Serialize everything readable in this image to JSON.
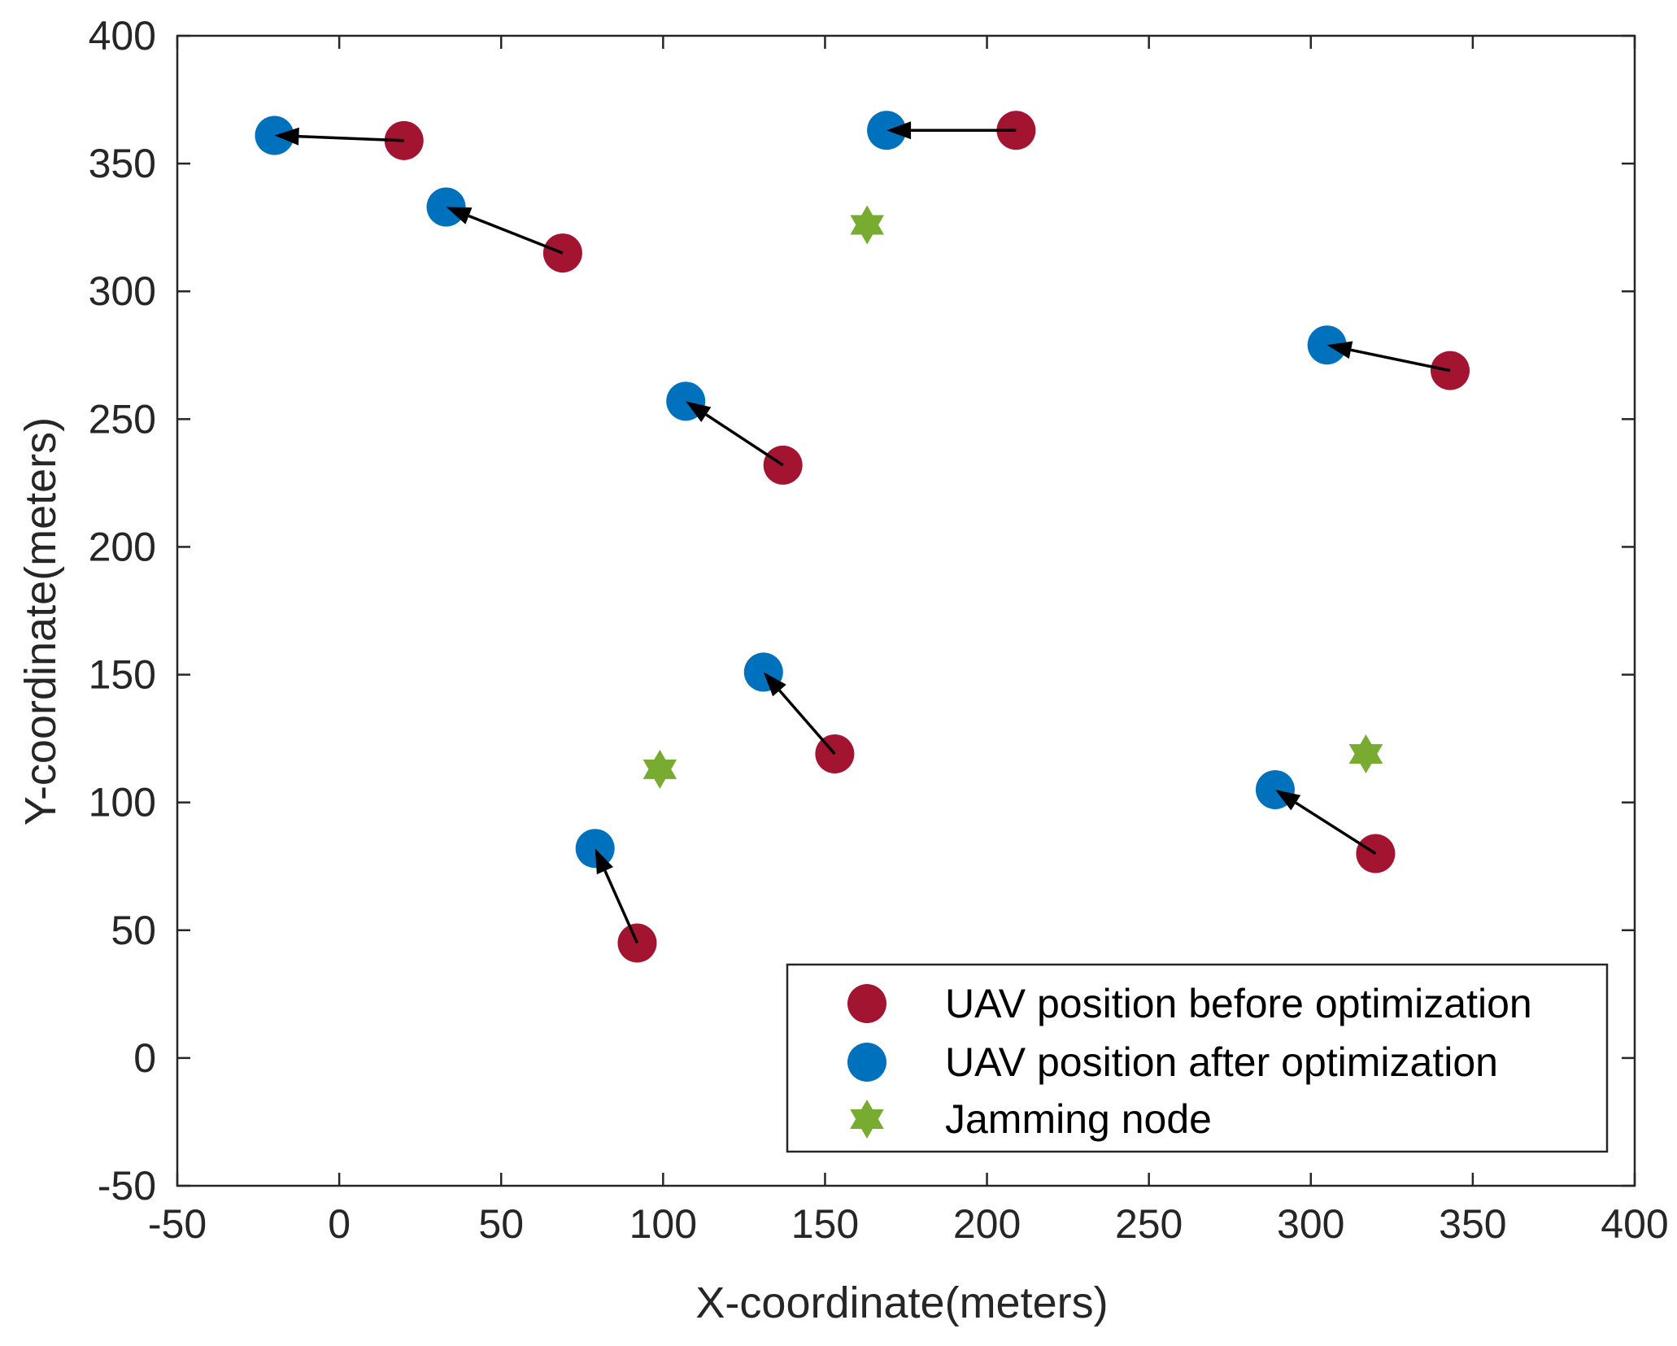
{
  "chart_data": {
    "type": "scatter",
    "title": "",
    "xlabel": "X-coordinate(meters)",
    "ylabel": "Y-coordinate(meters)",
    "xlim": [
      -50,
      400
    ],
    "ylim": [
      -50,
      400
    ],
    "xticks": [
      -50,
      0,
      50,
      100,
      150,
      200,
      250,
      300,
      350,
      400
    ],
    "yticks": [
      -50,
      0,
      50,
      100,
      150,
      200,
      250,
      300,
      350,
      400
    ],
    "xtick_labels": [
      "-50",
      "0",
      "50",
      "100",
      "150",
      "200",
      "250",
      "300",
      "350",
      "400"
    ],
    "ytick_labels": [
      "-50",
      "0",
      "50",
      "100",
      "150",
      "200",
      "250",
      "300",
      "350",
      "400"
    ],
    "grid": false,
    "legend_position": "bottom-right",
    "series": [
      {
        "name": "UAV position before optimization",
        "color": "#A2142F",
        "marker": "circle",
        "points": [
          [
            20,
            359
          ],
          [
            69,
            315
          ],
          [
            209,
            363
          ],
          [
            137,
            232
          ],
          [
            153,
            119
          ],
          [
            92,
            45
          ],
          [
            343,
            269
          ],
          [
            320,
            80
          ]
        ]
      },
      {
        "name": "UAV position after optimization",
        "color": "#0072BD",
        "marker": "circle",
        "points": [
          [
            -20,
            361
          ],
          [
            33,
            333
          ],
          [
            169,
            363
          ],
          [
            107,
            257
          ],
          [
            131,
            151
          ],
          [
            79,
            82
          ],
          [
            305,
            279
          ],
          [
            289,
            105
          ]
        ]
      },
      {
        "name": "Jamming node",
        "color": "#77AC30",
        "marker": "hexagram",
        "points": [
          [
            163,
            326
          ],
          [
            99,
            113
          ],
          [
            317,
            119
          ]
        ]
      }
    ],
    "arrows": [
      {
        "from": [
          20,
          359
        ],
        "to": [
          -20,
          361
        ]
      },
      {
        "from": [
          69,
          315
        ],
        "to": [
          33,
          333
        ]
      },
      {
        "from": [
          209,
          363
        ],
        "to": [
          169,
          363
        ]
      },
      {
        "from": [
          137,
          232
        ],
        "to": [
          107,
          257
        ]
      },
      {
        "from": [
          153,
          119
        ],
        "to": [
          131,
          151
        ]
      },
      {
        "from": [
          92,
          45
        ],
        "to": [
          79,
          82
        ]
      },
      {
        "from": [
          343,
          269
        ],
        "to": [
          305,
          279
        ]
      },
      {
        "from": [
          320,
          80
        ],
        "to": [
          289,
          105
        ]
      }
    ]
  }
}
